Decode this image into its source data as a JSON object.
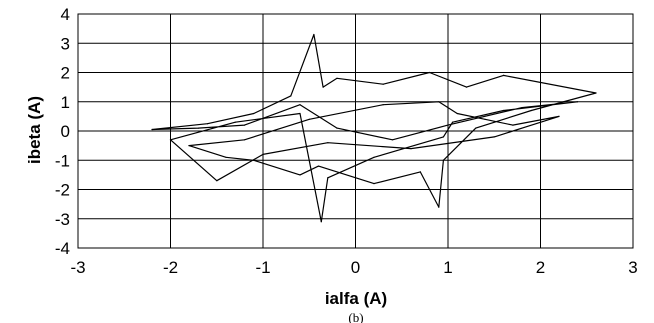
{
  "chart_data": {
    "type": "line",
    "title": "",
    "xlabel": "ialfa (A)",
    "ylabel": "ibeta (A)",
    "xlim": [
      -3,
      3
    ],
    "ylim": [
      -4,
      4
    ],
    "x_ticks": [
      "-3",
      "-2",
      "-1",
      "0",
      "1",
      "2",
      "3"
    ],
    "y_ticks": [
      "4",
      "3",
      "2",
      "1",
      "0",
      "-1",
      "-2",
      "-3",
      "-4"
    ],
    "grid": true,
    "legend": "none",
    "series": [
      {
        "color": "#000000",
        "x": [
          -2.2,
          -1.6,
          -1.1,
          -0.7,
          -0.45,
          -0.35,
          -0.2,
          0.3,
          0.8,
          1.2,
          1.6,
          2.6,
          1.9,
          1.3,
          0.95,
          0.9,
          0.7,
          0.2,
          -0.4,
          -0.6,
          -1.1,
          -1.4,
          -1.8,
          -1.2,
          -0.5,
          0.3,
          0.9,
          1.1,
          1.4,
          1.7,
          2.2,
          1.5,
          0.6,
          -0.3,
          -1.0,
          -1.5,
          -2.0,
          -1.3,
          -0.6,
          -0.37,
          -0.3,
          0.2,
          0.95,
          1.05,
          1.6,
          2.4,
          1.8,
          1.0,
          0.4,
          -0.2,
          -0.6,
          -1.2,
          -1.7,
          -2.2
        ],
        "y": [
          0.05,
          0.25,
          0.6,
          1.2,
          3.3,
          1.5,
          1.8,
          1.6,
          2.0,
          1.5,
          1.9,
          1.3,
          0.7,
          0.1,
          -1.0,
          -2.6,
          -1.4,
          -1.8,
          -1.2,
          -1.5,
          -1.0,
          -0.9,
          -0.5,
          -0.3,
          0.4,
          0.9,
          1.0,
          0.6,
          0.4,
          0.2,
          0.5,
          -0.2,
          -0.6,
          -0.4,
          -0.8,
          -1.7,
          -0.3,
          0.3,
          0.6,
          -3.1,
          -1.6,
          -0.9,
          -0.2,
          0.3,
          0.7,
          1.0,
          0.8,
          0.2,
          -0.3,
          0.1,
          0.9,
          0.2,
          0.1,
          0.05
        ]
      }
    ],
    "caption": "(b)"
  }
}
